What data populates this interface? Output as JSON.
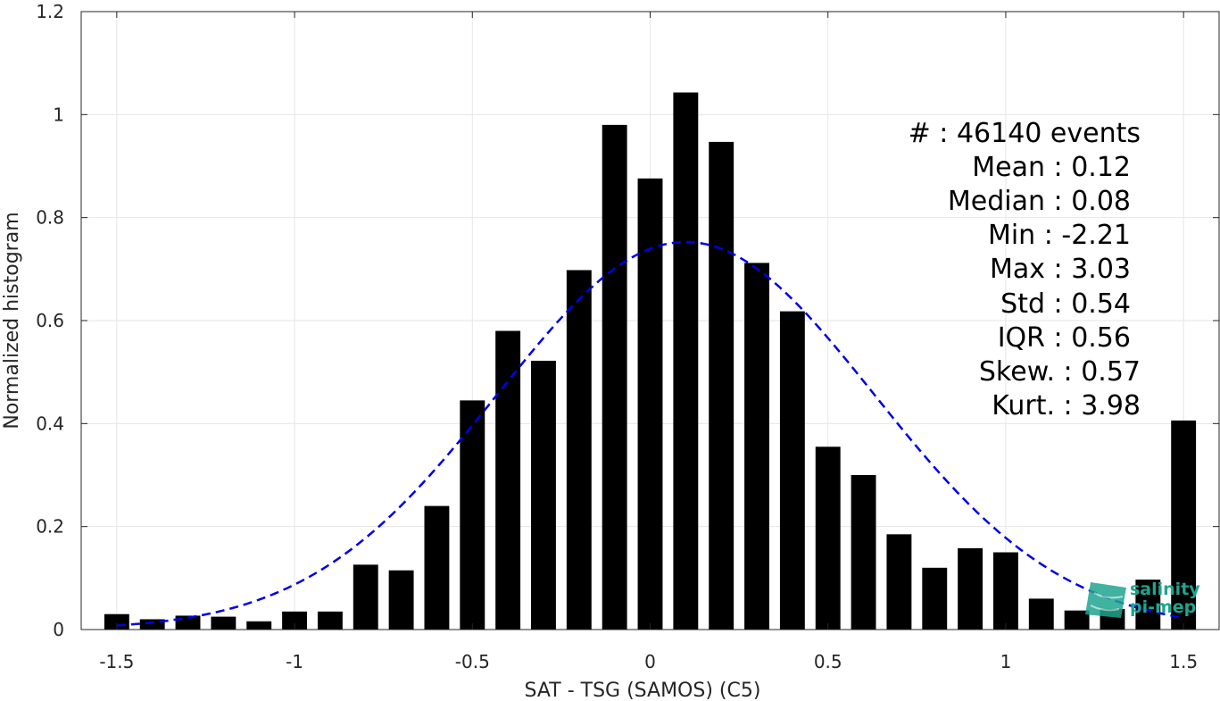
{
  "chart_data": {
    "type": "bar",
    "xlabel": "SAT - TSG (SAMOS) (C5)",
    "ylabel": "Normalized histogram",
    "xlim": [
      -1.6,
      1.6
    ],
    "ylim": [
      0,
      1.2
    ],
    "grid": true,
    "x_ticks": [
      -1.5,
      -1,
      -0.5,
      0,
      0.5,
      1,
      1.5
    ],
    "x_tick_labels": [
      "-1.5",
      "-1",
      "-0.5",
      "0",
      "0.5",
      "1",
      "1.5"
    ],
    "y_ticks": [
      0,
      0.2,
      0.4,
      0.6,
      0.8,
      1,
      1.2
    ],
    "y_tick_labels": [
      "0",
      "0.2",
      "0.4",
      "0.6",
      "0.8",
      "1",
      "1.2"
    ],
    "bar_width": 0.07,
    "bars": {
      "x": [
        -1.5,
        -1.4,
        -1.3,
        -1.2,
        -1.1,
        -1.0,
        -0.9,
        -0.8,
        -0.7,
        -0.6,
        -0.5,
        -0.4,
        -0.3,
        -0.2,
        -0.1,
        0.0,
        0.1,
        0.2,
        0.3,
        0.4,
        0.5,
        0.6,
        0.7,
        0.8,
        0.9,
        1.0,
        1.1,
        1.2,
        1.3,
        1.4,
        1.5
      ],
      "values": [
        0.03,
        0.02,
        0.027,
        0.025,
        0.016,
        0.035,
        0.035,
        0.126,
        0.115,
        0.24,
        0.445,
        0.58,
        0.522,
        0.698,
        0.98,
        0.876,
        1.043,
        0.947,
        0.712,
        0.618,
        0.355,
        0.3,
        0.185,
        0.12,
        0.158,
        0.15,
        0.06,
        0.037,
        0.04,
        0.097,
        0.406
      ],
      "color": "#000000"
    },
    "fit_curve": {
      "kind": "normal",
      "mean": 0.1,
      "std": 0.53,
      "x_range": [
        -1.5,
        1.5
      ],
      "style": "dashed",
      "color": "#0000e6"
    },
    "stats": [
      "#  : 46140 events",
      "Mean : 0.12",
      "Median : 0.08",
      "Min : -2.21",
      "Max : 3.03",
      "Std : 0.54",
      "IQR : 0.56",
      "Skew. : 0.57",
      "Kurt. : 3.98"
    ]
  },
  "logo": {
    "line1": "salinity",
    "line2": "pi-mep",
    "color": "#1fa58f"
  }
}
